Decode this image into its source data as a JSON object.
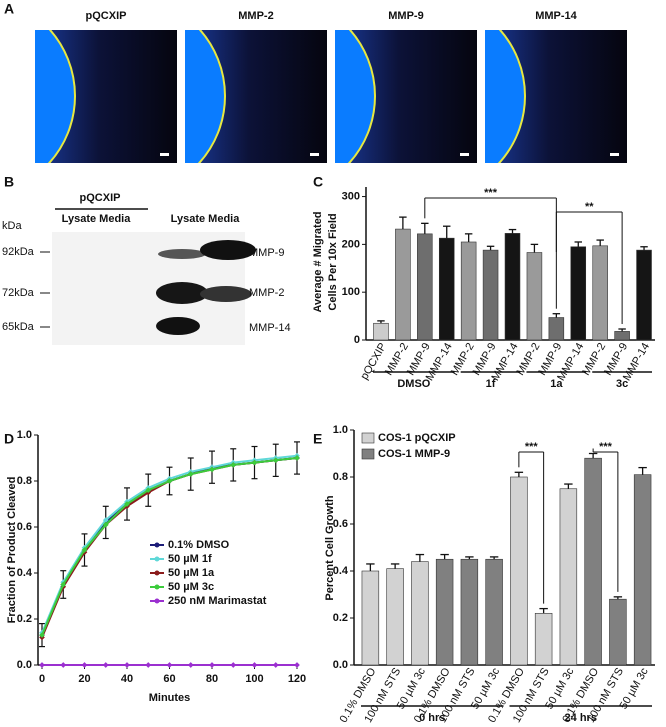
{
  "panel_a": {
    "label": "A",
    "titles": [
      "pQCXIP",
      "MMP-2",
      "MMP-9",
      "MMP-14"
    ]
  },
  "panel_b": {
    "label": "B",
    "group_label": "pQCXIP",
    "lane_labels": [
      "Lysate Media",
      "Lysate Media"
    ],
    "unit": "kDa",
    "rows": [
      {
        "marker": "92kDa",
        "protein": "MMP-9"
      },
      {
        "marker": "72kDa",
        "protein": "MMP-2"
      },
      {
        "marker": "65kDa",
        "protein": "MMP-14"
      }
    ]
  },
  "chart_data": [
    {
      "type": "bar",
      "panel_label": "C",
      "y_label": [
        "Average # Migrated",
        "Cells Per 10x Field"
      ],
      "categories": [
        "pQCXIP",
        "MMP-2",
        "MMP-9",
        "MMP-14",
        "MMP-2",
        "MMP-9",
        "MMP-14",
        "MMP-2",
        "MMP-9",
        "MMP-14",
        "MMP-2",
        "MMP-9",
        "MMP-14"
      ],
      "values": [
        35,
        232,
        222,
        213,
        205,
        188,
        223,
        183,
        47,
        195,
        197,
        18,
        188
      ],
      "errors": [
        5,
        25,
        22,
        25,
        17,
        8,
        8,
        17,
        8,
        10,
        12,
        5,
        7
      ],
      "colors": [
        "#cccccc",
        "#9a9a9a",
        "#6e6e6e",
        "#151515",
        "#9a9a9a",
        "#6e6e6e",
        "#151515",
        "#9a9a9a",
        "#6e6e6e",
        "#151515",
        "#9a9a9a",
        "#6e6e6e",
        "#151515"
      ],
      "groups": [
        {
          "label": "DMSO",
          "from": 0,
          "to": 3
        },
        {
          "label": "1f",
          "from": 4,
          "to": 6
        },
        {
          "label": "1a",
          "from": 7,
          "to": 9
        },
        {
          "label": "3c",
          "from": 10,
          "to": 12
        }
      ],
      "significance": [
        {
          "label": "***",
          "from": 2,
          "to": 8
        },
        {
          "label": "**",
          "from": 8,
          "to": 11
        }
      ],
      "ylim": [
        0,
        320
      ],
      "yticks": [
        0,
        100,
        200,
        300
      ]
    },
    {
      "type": "line",
      "panel_label": "D",
      "x_label": "Minutes",
      "y_label": "Fraction of Product Cleaved",
      "x": [
        0,
        10,
        20,
        30,
        40,
        50,
        60,
        70,
        80,
        90,
        100,
        110,
        120
      ],
      "series": [
        {
          "name": "0.1% DMSO",
          "color": "#1c1c78",
          "values": [
            0.13,
            0.35,
            0.5,
            0.62,
            0.7,
            0.76,
            0.8,
            0.83,
            0.86,
            0.87,
            0.88,
            0.89,
            0.9
          ],
          "errors": [
            0.05,
            0.06,
            0.07,
            0.07,
            0.07,
            0.07,
            0.06,
            0.07,
            0.07,
            0.07,
            0.07,
            0.07,
            0.07
          ]
        },
        {
          "name": "50 µM 1f",
          "color": "#5fd8d8",
          "values": [
            0.14,
            0.36,
            0.51,
            0.63,
            0.71,
            0.77,
            0.81,
            0.84,
            0.86,
            0.88,
            0.89,
            0.9,
            0.91
          ]
        },
        {
          "name": "50 µM 1a",
          "color": "#8b1c1c",
          "values": [
            0.12,
            0.34,
            0.49,
            0.61,
            0.69,
            0.75,
            0.8,
            0.83,
            0.85,
            0.87,
            0.88,
            0.89,
            0.9
          ]
        },
        {
          "name": "50 µM 3c",
          "color": "#3ccc3c",
          "values": [
            0.13,
            0.35,
            0.5,
            0.61,
            0.7,
            0.76,
            0.8,
            0.83,
            0.85,
            0.87,
            0.88,
            0.89,
            0.9
          ]
        },
        {
          "name": "250 nM Marimastat",
          "color": "#9b30d0",
          "values": [
            0,
            0,
            0,
            0,
            0,
            0,
            0,
            0,
            0,
            0,
            0,
            0,
            0
          ]
        }
      ],
      "xlim": [
        0,
        120
      ],
      "xticks": [
        0,
        20,
        40,
        60,
        80,
        100,
        120
      ],
      "ylim": [
        0,
        1
      ],
      "yticks": [
        {
          "value": 0,
          "label": "0.0"
        },
        0.2,
        0.4,
        0.6,
        0.8,
        {
          "value": 1,
          "label": "1.0"
        }
      ]
    },
    {
      "type": "bar",
      "panel_label": "E",
      "y_label": [
        "Percent Cell Growth"
      ],
      "categories": [
        "0.1% DMSO",
        "100 nM STS",
        "50 µM 3c",
        "0.1% DMSO",
        "100 nM STS",
        "50 µM 3c",
        "0.1% DMSO",
        "100 nM STS",
        "50 µM 3c",
        "0.1% DMSO",
        "100 nM STS",
        "50 µM 3c"
      ],
      "series": [
        {
          "name": "COS-1 pQCXIP",
          "color": "#d2d2d2",
          "values": [
            0.4,
            0.41,
            0.44,
            null,
            null,
            null,
            0.8,
            0.22,
            0.75,
            null,
            null,
            null
          ],
          "errors": [
            0.03,
            0.02,
            0.03,
            null,
            null,
            null,
            0.02,
            0.02,
            0.02,
            null,
            null,
            null
          ]
        },
        {
          "name": "COS-1 MMP-9",
          "color": "#808080",
          "values": [
            null,
            null,
            null,
            0.45,
            0.45,
            0.45,
            null,
            null,
            null,
            0.88,
            0.28,
            0.81
          ],
          "errors": [
            null,
            null,
            null,
            0.02,
            0.01,
            0.01,
            null,
            null,
            null,
            0.02,
            0.01,
            0.03
          ]
        }
      ],
      "groups": [
        {
          "label": "0 hrs",
          "from": 0,
          "to": 5
        },
        {
          "label": "24 hrs",
          "from": 6,
          "to": 11
        }
      ],
      "significance": [
        {
          "label": "***",
          "from": 6,
          "to": 7
        },
        {
          "label": "***",
          "from": 9,
          "to": 10
        }
      ],
      "ylim": [
        0,
        1
      ],
      "yticks": [
        {
          "value": 0,
          "label": "0.0"
        },
        0.2,
        0.4,
        0.6,
        0.8,
        {
          "value": 1,
          "label": "1.0"
        }
      ]
    }
  ]
}
